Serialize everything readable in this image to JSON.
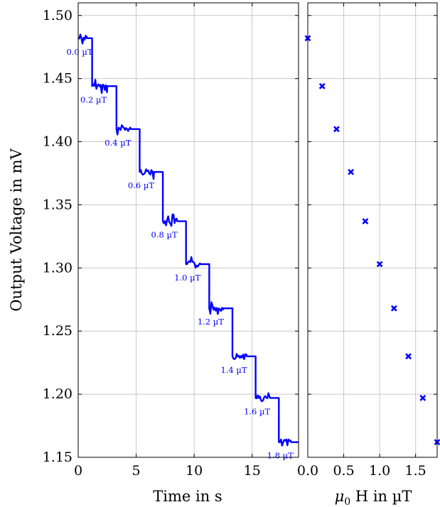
{
  "accent_color": "#0000ff",
  "chart_data": [
    {
      "type": "line",
      "title": "",
      "xlabel": "Time in s",
      "ylabel": "Output Voltage in mV",
      "xlim": [
        0,
        19
      ],
      "ylim": [
        1.15,
        1.51
      ],
      "grid": true,
      "x_ticks": [
        "0",
        "5",
        "10",
        "15"
      ],
      "y_ticks": [
        "1.15",
        "1.20",
        "1.25",
        "1.30",
        "1.35",
        "1.40",
        "1.45",
        "1.50"
      ],
      "steps": [
        {
          "t_start": 0.0,
          "t_end": 1.2,
          "v": 1.482,
          "label": "0.0 µT"
        },
        {
          "t_start": 1.2,
          "t_end": 3.3,
          "v": 1.444,
          "label": "0.2 µT"
        },
        {
          "t_start": 3.3,
          "t_end": 5.3,
          "v": 1.41,
          "label": "0.4 µT"
        },
        {
          "t_start": 5.3,
          "t_end": 7.3,
          "v": 1.376,
          "label": "0.6 µT"
        },
        {
          "t_start": 7.3,
          "t_end": 9.3,
          "v": 1.337,
          "label": "0.8 µT"
        },
        {
          "t_start": 9.3,
          "t_end": 11.3,
          "v": 1.303,
          "label": "1.0 µT"
        },
        {
          "t_start": 11.3,
          "t_end": 13.3,
          "v": 1.268,
          "label": "1.2 µT"
        },
        {
          "t_start": 13.3,
          "t_end": 15.3,
          "v": 1.23,
          "label": "1.4 µT"
        },
        {
          "t_start": 15.3,
          "t_end": 17.3,
          "v": 1.197,
          "label": "1.6 µT"
        },
        {
          "t_start": 17.3,
          "t_end": 19.0,
          "v": 1.162,
          "label": "1.8 µT"
        }
      ]
    },
    {
      "type": "scatter",
      "title": "",
      "xlabel_prefix": "μ",
      "xlabel_sub": "0",
      "xlabel_rest": " H in µT",
      "xlim": [
        0,
        1.8
      ],
      "ylim": [
        1.15,
        1.51
      ],
      "grid": true,
      "x_ticks": [
        "0.0",
        "0.5",
        "1.0",
        "1.5"
      ],
      "x": [
        0.0,
        0.2,
        0.4,
        0.6,
        0.8,
        1.0,
        1.2,
        1.4,
        1.6,
        1.8
      ],
      "y": [
        1.482,
        1.444,
        1.41,
        1.376,
        1.337,
        1.303,
        1.268,
        1.23,
        1.197,
        1.162
      ]
    }
  ]
}
